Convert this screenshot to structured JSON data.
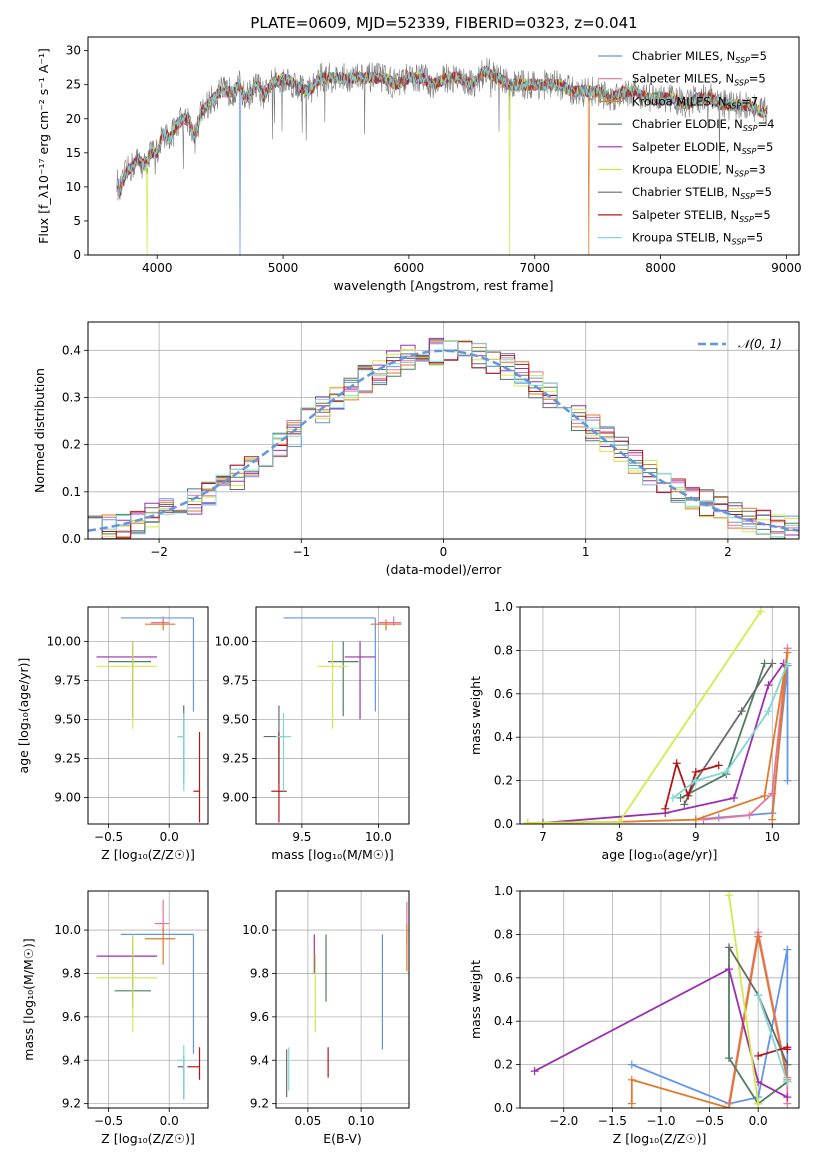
{
  "figure_title": "PLATE=0609, MJD=52339, FIBERID=0323, z=0.041",
  "models": [
    {
      "name": "Chabrier MILES",
      "nssp": "5",
      "color": "#6495ed"
    },
    {
      "name": "Salpeter MILES",
      "nssp": "5",
      "color": "#e8739d"
    },
    {
      "name": "Kroupa MILES",
      "nssp": "7",
      "color": "#e07a2c"
    },
    {
      "name": "Chabrier ELODIE",
      "nssp": "4",
      "color": "#4f7f5e"
    },
    {
      "name": "Salpeter ELODIE",
      "nssp": "5",
      "color": "#9b2fb0"
    },
    {
      "name": "Kroupa ELODIE",
      "nssp": "3",
      "color": "#d4ea4a"
    },
    {
      "name": "Chabrier STELIB",
      "nssp": "5",
      "color": "#6b6b6b"
    },
    {
      "name": "Salpeter STELIB",
      "nssp": "5",
      "color": "#b01818"
    },
    {
      "name": "Kroupa STELIB",
      "nssp": "5",
      "color": "#7fd8d8"
    }
  ],
  "chart_data": [
    {
      "id": "spectrum",
      "type": "line",
      "xlabel": "wavelength [Angstrom, rest frame]",
      "ylabel": "Flux [f_λ10⁻¹⁷ erg cm⁻² s⁻¹ A⁻¹]",
      "xlim": [
        3450,
        9100
      ],
      "ylim": [
        0,
        32
      ],
      "xticks": [
        4000,
        5000,
        6000,
        7000,
        8000,
        9000
      ],
      "yticks": [
        0,
        5,
        10,
        15,
        20,
        25,
        30
      ],
      "grid": false,
      "legend": "right",
      "series": [
        {
          "points": [
            [
              3680,
              11
            ],
            [
              3700,
              9
            ],
            [
              3750,
              12
            ],
            [
              3800,
              13
            ],
            [
              3850,
              14
            ],
            [
              3900,
              13
            ],
            [
              3950,
              15
            ],
            [
              4000,
              15
            ],
            [
              4050,
              18
            ],
            [
              4100,
              17
            ],
            [
              4150,
              19
            ],
            [
              4200,
              20
            ],
            [
              4250,
              20
            ],
            [
              4300,
              17
            ],
            [
              4350,
              21
            ],
            [
              4400,
              22
            ],
            [
              4450,
              23
            ],
            [
              4500,
              24
            ],
            [
              4550,
              24
            ],
            [
              4600,
              24
            ],
            [
              4650,
              25
            ],
            [
              4700,
              23
            ],
            [
              4750,
              24
            ],
            [
              4800,
              25
            ],
            [
              4850,
              23
            ],
            [
              4900,
              25
            ],
            [
              5000,
              26
            ],
            [
              5100,
              25
            ],
            [
              5200,
              24
            ],
            [
              5300,
              26
            ],
            [
              5400,
              26
            ],
            [
              5500,
              26
            ],
            [
              5600,
              26
            ],
            [
              5700,
              26
            ],
            [
              5800,
              26
            ],
            [
              5900,
              25
            ],
            [
              6000,
              26
            ],
            [
              6100,
              26
            ],
            [
              6200,
              25
            ],
            [
              6300,
              26
            ],
            [
              6400,
              26
            ],
            [
              6500,
              25
            ],
            [
              6600,
              27
            ],
            [
              6700,
              26
            ],
            [
              6800,
              25
            ],
            [
              6900,
              25
            ],
            [
              7000,
              25
            ],
            [
              7100,
              25
            ],
            [
              7200,
              25
            ],
            [
              7300,
              24
            ],
            [
              7400,
              24
            ],
            [
              7500,
              24
            ],
            [
              7600,
              23
            ],
            [
              7700,
              24
            ],
            [
              7800,
              24
            ],
            [
              7900,
              23
            ],
            [
              8000,
              23
            ],
            [
              8100,
              23
            ],
            [
              8200,
              22
            ],
            [
              8300,
              23
            ],
            [
              8400,
              23
            ],
            [
              8500,
              22
            ],
            [
              8600,
              22
            ],
            [
              8700,
              22
            ],
            [
              8800,
              21
            ],
            [
              8850,
              21
            ]
          ]
        }
      ]
    },
    {
      "id": "residuals",
      "type": "line",
      "xlabel": "(data-model)/error",
      "ylabel": "Normed distribution",
      "xlim": [
        -2.5,
        2.5
      ],
      "ylim": [
        0,
        0.46
      ],
      "xticks": [
        -2,
        -1,
        0,
        1,
        2
      ],
      "yticks": [
        0,
        0.1,
        0.2,
        0.3,
        0.4
      ],
      "grid": true,
      "legend": "top-right",
      "reference_label": "𝒩(0, 1)"
    },
    {
      "id": "age-vs-Z",
      "type": "scatter",
      "xlabel": "Z [log₁₀(Z/Z☉)]",
      "ylabel": "age  [log₁₀(age/yr)]",
      "xlim": [
        -0.67,
        0.32
      ],
      "ylim": [
        8.83,
        10.22
      ],
      "xticks": [
        -0.5,
        0.0
      ],
      "yticks": [
        9.0,
        9.25,
        9.5,
        9.75,
        10.0
      ],
      "grid": true,
      "points": [
        {
          "x": 0.2,
          "y": 10.15,
          "xerr": [
            0.6,
            0.0
          ],
          "yerr": [
            0.6,
            0.0
          ]
        },
        {
          "x": -0.05,
          "y": 10.12,
          "xerr": [
            0.1,
            0.05
          ],
          "yerr": [
            0.02,
            0.04
          ]
        },
        {
          "x": -0.05,
          "y": 10.11,
          "xerr": [
            0.15,
            0.1
          ],
          "yerr": [
            0.04,
            0.03
          ]
        },
        {
          "x": -0.3,
          "y": 9.87,
          "xerr": [
            0.2,
            0.15
          ],
          "yerr": [
            0.35,
            0.13
          ]
        },
        {
          "x": -0.3,
          "y": 9.9,
          "xerr": [
            0.3,
            0.2
          ],
          "yerr": [
            0.4,
            0.1
          ]
        },
        {
          "x": -0.3,
          "y": 9.84,
          "xerr": [
            0.3,
            0.2
          ],
          "yerr": [
            0.4,
            0.16
          ]
        },
        {
          "x": 0.12,
          "y": 9.39,
          "xerr": [
            0.05,
            0.0
          ],
          "yerr": [
            0.3,
            0.2
          ]
        },
        {
          "x": 0.25,
          "y": 9.04,
          "xerr": [
            0.05,
            0.0
          ],
          "yerr": [
            0.2,
            0.38
          ]
        },
        {
          "x": 0.12,
          "y": 9.39,
          "xerr": [
            0.05,
            0.0
          ],
          "yerr": [
            0.35,
            0.15
          ]
        }
      ]
    },
    {
      "id": "age-vs-mass",
      "type": "scatter",
      "xlabel": "mass [log₁₀(M/M☉)]",
      "ylabel": "",
      "xlim": [
        9.2,
        10.2
      ],
      "ylim": [
        8.83,
        10.22
      ],
      "xticks": [
        9.5,
        10.0
      ],
      "yticks": [
        9.0,
        9.25,
        9.5,
        9.75,
        10.0
      ],
      "grid": true,
      "points": [
        {
          "x": 9.98,
          "y": 10.15,
          "xerr": [
            0.6,
            0.0
          ],
          "yerr": [
            0.6,
            0.0
          ]
        },
        {
          "x": 10.1,
          "y": 10.12,
          "xerr": [
            0.1,
            0.05
          ],
          "yerr": [
            0.02,
            0.04
          ]
        },
        {
          "x": 10.05,
          "y": 10.11,
          "xerr": [
            0.1,
            0.1
          ],
          "yerr": [
            0.04,
            0.03
          ]
        },
        {
          "x": 9.77,
          "y": 9.87,
          "xerr": [
            0.1,
            0.1
          ],
          "yerr": [
            0.35,
            0.13
          ]
        },
        {
          "x": 9.88,
          "y": 9.9,
          "xerr": [
            0.1,
            0.1
          ],
          "yerr": [
            0.4,
            0.1
          ]
        },
        {
          "x": 9.7,
          "y": 9.84,
          "xerr": [
            0.1,
            0.1
          ],
          "yerr": [
            0.4,
            0.16
          ]
        },
        {
          "x": 9.35,
          "y": 9.39,
          "xerr": [
            0.1,
            0.05
          ],
          "yerr": [
            0.3,
            0.2
          ]
        },
        {
          "x": 9.35,
          "y": 9.04,
          "xerr": [
            0.05,
            0.05
          ],
          "yerr": [
            0.2,
            0.38
          ]
        },
        {
          "x": 9.38,
          "y": 9.39,
          "xerr": [
            0.05,
            0.05
          ],
          "yerr": [
            0.35,
            0.15
          ]
        }
      ]
    },
    {
      "id": "mass-weight-vs-age",
      "type": "line",
      "xlabel": "age  [log₁₀(age/yr)]",
      "ylabel": "mass weight",
      "xlim": [
        6.7,
        10.35
      ],
      "ylim": [
        0,
        1.0
      ],
      "xticks": [
        7,
        8,
        9,
        10
      ],
      "yticks": [
        0.0,
        0.2,
        0.4,
        0.6,
        0.8,
        1.0
      ],
      "grid": true,
      "series": [
        {
          "x": [
            9.0,
            9.3,
            10.0,
            10.2,
            10.2
          ],
          "y": [
            0.02,
            0.03,
            0.05,
            0.73,
            0.2
          ]
        },
        {
          "x": [
            9.1,
            9.7,
            10.0,
            10.2
          ],
          "y": [
            0.02,
            0.04,
            0.14,
            0.81
          ]
        },
        {
          "x": [
            6.8,
            8.0,
            9.0,
            9.9,
            10.2,
            10.0
          ],
          "y": [
            0.005,
            0.01,
            0.02,
            0.13,
            0.79,
            0.02
          ]
        },
        {
          "x": [
            8.8,
            9.4,
            9.9
          ],
          "y": [
            0.12,
            0.23,
            0.74
          ]
        },
        {
          "x": [
            7.0,
            8.6,
            9.5,
            9.95,
            10.15
          ],
          "y": [
            0.005,
            0.05,
            0.12,
            0.64,
            0.74
          ]
        },
        {
          "x": [
            6.8,
            8.0,
            9.85
          ],
          "y": [
            0.005,
            0.01,
            0.98
          ]
        },
        {
          "x": [
            8.85,
            9.0,
            9.6,
            10.0
          ],
          "y": [
            0.09,
            0.2,
            0.52,
            0.74
          ]
        },
        {
          "x": [
            8.6,
            8.75,
            8.9,
            9.0,
            9.3
          ],
          "y": [
            0.07,
            0.28,
            0.13,
            0.24,
            0.27
          ]
        },
        {
          "x": [
            8.7,
            9.0,
            9.4,
            9.95,
            10.2
          ],
          "y": [
            0.12,
            0.2,
            0.24,
            0.52,
            0.74
          ]
        }
      ]
    },
    {
      "id": "mass-vs-Z",
      "type": "scatter",
      "xlabel": "Z [log₁₀(Z/Z☉)]",
      "ylabel": "mass [log₁₀(M/M☉)]",
      "xlim": [
        -0.67,
        0.32
      ],
      "ylim": [
        9.18,
        10.18
      ],
      "xticks": [
        -0.5,
        0.0
      ],
      "yticks": [
        9.2,
        9.4,
        9.6,
        9.8,
        10.0
      ],
      "grid": true,
      "points": [
        {
          "x": 0.2,
          "y": 9.98,
          "xerr": [
            0.6,
            0.0
          ],
          "yerr": [
            0.55,
            0.0
          ]
        },
        {
          "x": -0.05,
          "y": 10.03,
          "xerr": [
            0.07,
            0.05
          ],
          "yerr": [
            0.05,
            0.11
          ]
        },
        {
          "x": -0.05,
          "y": 9.96,
          "xerr": [
            0.15,
            0.1
          ],
          "yerr": [
            0.12,
            0.06
          ]
        },
        {
          "x": -0.3,
          "y": 9.72,
          "xerr": [
            0.15,
            0.15
          ],
          "yerr": [
            0.08,
            0.2
          ]
        },
        {
          "x": -0.3,
          "y": 9.88,
          "xerr": [
            0.3,
            0.2
          ],
          "yerr": [
            0.2,
            0.1
          ]
        },
        {
          "x": -0.3,
          "y": 9.78,
          "xerr": [
            0.3,
            0.2
          ],
          "yerr": [
            0.25,
            0.2
          ]
        },
        {
          "x": 0.12,
          "y": 9.37,
          "xerr": [
            0.05,
            0.0
          ],
          "yerr": [
            0.15,
            0.05
          ]
        },
        {
          "x": 0.25,
          "y": 9.37,
          "xerr": [
            0.1,
            0.0
          ],
          "yerr": [
            0.06,
            0.09
          ]
        },
        {
          "x": 0.12,
          "y": 9.4,
          "xerr": [
            0.05,
            0.0
          ],
          "yerr": [
            0.18,
            0.07
          ]
        }
      ]
    },
    {
      "id": "mass-vs-EBV",
      "type": "scatter",
      "xlabel": "E(B-V)",
      "ylabel": "",
      "xlim": [
        0.02,
        0.145
      ],
      "ylim": [
        9.18,
        10.18
      ],
      "xticks": [
        0.05,
        0.1
      ],
      "yticks": [
        9.2,
        9.4,
        9.6,
        9.8,
        10.0
      ],
      "grid": true,
      "points": [
        {
          "x": 0.12,
          "y": 9.7,
          "yerr": [
            0.25,
            0.28
          ]
        },
        {
          "x": 0.143,
          "y": 9.98,
          "yerr": [
            0.05,
            0.15
          ]
        },
        {
          "x": 0.143,
          "y": 9.93,
          "yerr": [
            0.12,
            0.1
          ]
        },
        {
          "x": 0.067,
          "y": 9.83,
          "yerr": [
            0.16,
            0.15
          ]
        },
        {
          "x": 0.056,
          "y": 9.9,
          "yerr": [
            0.1,
            0.08
          ]
        },
        {
          "x": 0.057,
          "y": 9.73,
          "yerr": [
            0.2,
            0.16
          ]
        },
        {
          "x": 0.03,
          "y": 9.35,
          "yerr": [
            0.12,
            0.1
          ]
        },
        {
          "x": 0.069,
          "y": 9.38,
          "yerr": [
            0.06,
            0.08
          ]
        },
        {
          "x": 0.032,
          "y": 9.36,
          "yerr": [
            0.1,
            0.1
          ]
        }
      ]
    },
    {
      "id": "mass-weight-vs-Z",
      "type": "line",
      "xlabel": "Z [log₁₀(Z/Z☉)]",
      "ylabel": "mass weight",
      "xlim": [
        -2.45,
        0.42
      ],
      "ylim": [
        0,
        1.0
      ],
      "xticks": [
        -2.0,
        -1.5,
        -1.0,
        -0.5,
        0.0
      ],
      "yticks": [
        0.0,
        0.2,
        0.4,
        0.6,
        0.8,
        1.0
      ],
      "grid": true,
      "series": [
        {
          "x": [
            -1.3,
            -0.3,
            0.0,
            0.3,
            0.3
          ],
          "y": [
            0.2,
            0.02,
            0.05,
            0.73,
            0.12
          ]
        },
        {
          "x": [
            -0.3,
            0.0,
            0.3,
            0.3
          ],
          "y": [
            0.02,
            0.81,
            0.14,
            0.02
          ]
        },
        {
          "x": [
            -1.3,
            -1.3,
            -0.3,
            0.0,
            0.3
          ],
          "y": [
            0.02,
            0.13,
            0.0,
            0.79,
            0.13
          ]
        },
        {
          "x": [
            -0.3,
            -0.3,
            0.0,
            0.3
          ],
          "y": [
            0.74,
            0.23,
            0.02,
            0.12
          ]
        },
        {
          "x": [
            -2.3,
            -0.3,
            0.0,
            0.3
          ],
          "y": [
            0.17,
            0.64,
            0.12,
            0.05
          ]
        },
        {
          "x": [
            -0.3,
            0.0
          ],
          "y": [
            0.98,
            0.02
          ]
        },
        {
          "x": [
            -0.3,
            0.0,
            0.3
          ],
          "y": [
            0.74,
            0.52,
            0.2
          ]
        },
        {
          "x": [
            0.0,
            0.3,
            0.3
          ],
          "y": [
            0.24,
            0.28,
            0.27
          ]
        },
        {
          "x": [
            0.0,
            0.3
          ],
          "y": [
            0.52,
            0.12
          ]
        }
      ]
    }
  ]
}
